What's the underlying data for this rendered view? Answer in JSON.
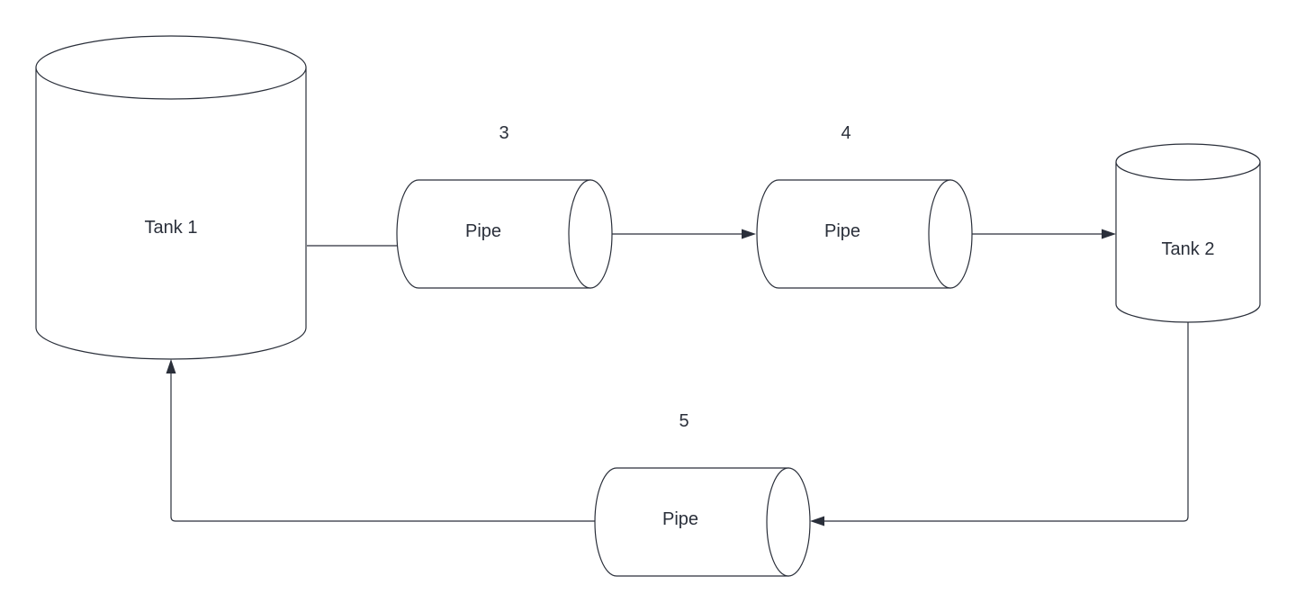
{
  "diagram": {
    "colors": {
      "stroke": "#2a2f3a",
      "fill": "#ffffff",
      "background": "#ffffff"
    },
    "nodes": {
      "tank1": {
        "label": "Tank 1",
        "shape": "cylinder-vertical"
      },
      "tank2": {
        "label": "Tank 2",
        "shape": "cylinder-vertical"
      },
      "pipe3": {
        "label": "Pipe",
        "number": "3",
        "shape": "cylinder-horizontal"
      },
      "pipe4": {
        "label": "Pipe",
        "number": "4",
        "shape": "cylinder-horizontal"
      },
      "pipe5": {
        "label": "Pipe",
        "number": "5",
        "shape": "cylinder-horizontal"
      }
    },
    "edges": [
      {
        "from": "tank1",
        "to": "pipe3"
      },
      {
        "from": "pipe3",
        "to": "pipe4"
      },
      {
        "from": "pipe4",
        "to": "tank2"
      },
      {
        "from": "tank2",
        "to": "pipe5"
      },
      {
        "from": "pipe5",
        "to": "tank1"
      }
    ]
  }
}
